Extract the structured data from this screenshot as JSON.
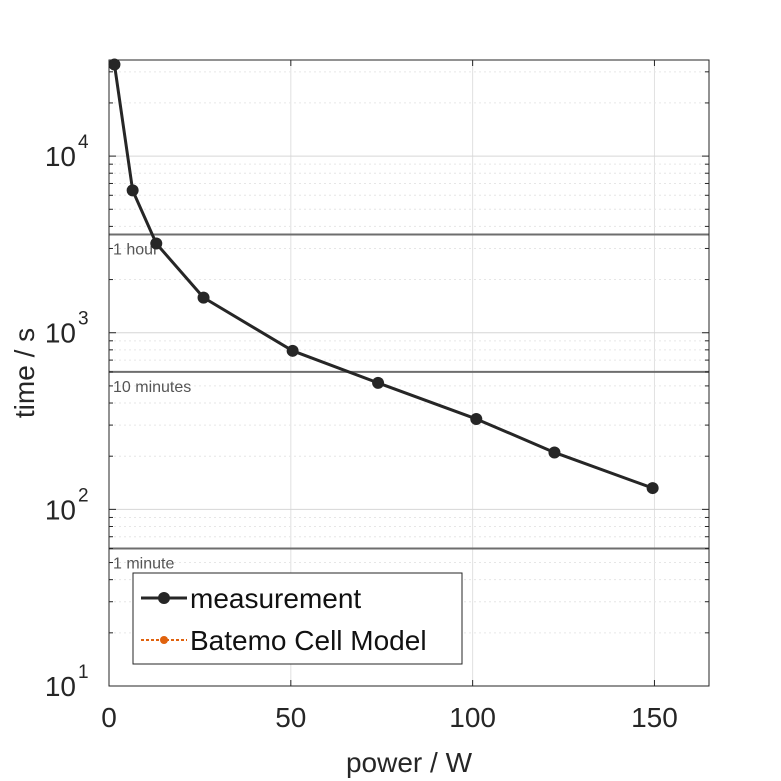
{
  "chart_data": {
    "type": "line",
    "title": "",
    "xlabel": "power / W",
    "ylabel": "time / s",
    "xlim": [
      0,
      165
    ],
    "ylim": [
      10,
      35000
    ],
    "y_scale": "log",
    "grid": true,
    "legend_position": "bottom-left",
    "x_ticks": [
      {
        "value": 0,
        "label": "0"
      },
      {
        "value": 50,
        "label": "50"
      },
      {
        "value": 100,
        "label": "100"
      },
      {
        "value": 150,
        "label": "150"
      }
    ],
    "y_ticks": [
      {
        "value": 10,
        "base": "10",
        "exp": "1"
      },
      {
        "value": 100,
        "base": "10",
        "exp": "2"
      },
      {
        "value": 1000,
        "base": "10",
        "exp": "3"
      },
      {
        "value": 10000,
        "base": "10",
        "exp": "4"
      }
    ],
    "series": [
      {
        "name": "measurement",
        "color": "#262626",
        "x": [
          1.5,
          6.5,
          13,
          26,
          50.5,
          74,
          101,
          122.5,
          149.5
        ],
        "y": [
          33000,
          6400,
          3200,
          1580,
          790,
          520,
          325,
          210,
          132
        ]
      },
      {
        "name": "Batemo Cell Model",
        "color": "#e0620d",
        "x": [],
        "y": []
      }
    ],
    "reference_lines": [
      {
        "value": 3600,
        "label": "1 hour"
      },
      {
        "value": 600,
        "label": "10 minutes"
      },
      {
        "value": 60,
        "label": "1 minute"
      }
    ]
  }
}
